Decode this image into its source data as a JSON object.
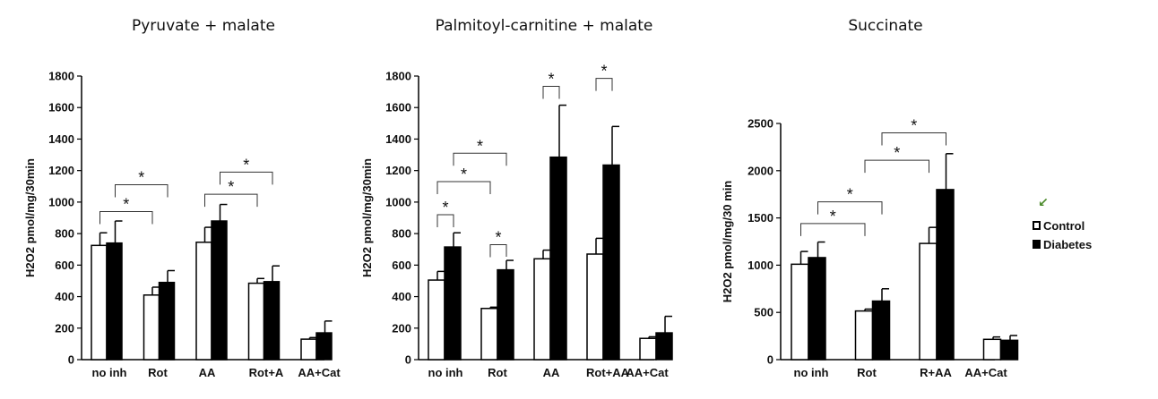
{
  "legend": {
    "arrow_icon": "green-arrow-icon",
    "control_label": "Control",
    "diabetes_label": "Diabetes",
    "control_color": "#ffffff",
    "diabetes_color": "#000000"
  },
  "chart_data": [
    {
      "type": "bar",
      "title": "Pyruvate + malate",
      "ylabel": "H2O2 pmol/mg/30min",
      "xlabel": "",
      "ylim": [
        0,
        1800
      ],
      "yticks": [
        0,
        200,
        400,
        600,
        800,
        1000,
        1200,
        1400,
        1600,
        1800
      ],
      "categories": [
        "no inh",
        "Rot",
        "AA",
        "Rot+A",
        "AA+Cat"
      ],
      "series": [
        {
          "name": "Control",
          "values": [
            725,
            410,
            745,
            485,
            130
          ],
          "errors": [
            80,
            50,
            95,
            30,
            10
          ]
        },
        {
          "name": "Diabetes",
          "values": [
            740,
            490,
            880,
            495,
            170
          ],
          "errors": [
            140,
            75,
            105,
            100,
            75
          ]
        }
      ],
      "annotations": [
        {
          "from": [
            0,
            0
          ],
          "to": [
            1,
            0
          ],
          "label": "*"
        },
        {
          "from": [
            0,
            1
          ],
          "to": [
            1,
            1
          ],
          "label": "*"
        },
        {
          "from": [
            2,
            0
          ],
          "to": [
            3,
            0
          ],
          "label": "*"
        },
        {
          "from": [
            2,
            1
          ],
          "to": [
            3,
            1
          ],
          "label": "*"
        }
      ]
    },
    {
      "type": "bar",
      "title": "Palmitoyl-carnitine + malate",
      "ylabel": "H2O2 pmol/mg/30min",
      "xlabel": "",
      "ylim": [
        0,
        1800
      ],
      "yticks": [
        0,
        200,
        400,
        600,
        800,
        1000,
        1200,
        1400,
        1600,
        1800
      ],
      "categories": [
        "no inh",
        "Rot",
        "AA",
        "Rot+AA",
        "AA+Cat"
      ],
      "series": [
        {
          "name": "Control",
          "values": [
            505,
            325,
            640,
            670,
            135
          ],
          "errors": [
            55,
            8,
            55,
            100,
            10
          ]
        },
        {
          "name": "Diabetes",
          "values": [
            715,
            570,
            1285,
            1235,
            170
          ],
          "errors": [
            90,
            60,
            330,
            245,
            105
          ]
        }
      ],
      "annotations": [
        {
          "from": [
            0,
            0
          ],
          "to": [
            0,
            1
          ],
          "label": "*"
        },
        {
          "from": [
            0,
            0
          ],
          "to": [
            1,
            0
          ],
          "label": "*"
        },
        {
          "from": [
            0,
            1
          ],
          "to": [
            1,
            1
          ],
          "label": "*"
        },
        {
          "from": [
            1,
            0
          ],
          "to": [
            1,
            1
          ],
          "label": "*"
        },
        {
          "from": [
            2,
            0
          ],
          "to": [
            2,
            1
          ],
          "label": "*"
        },
        {
          "from": [
            3,
            0
          ],
          "to": [
            3,
            1
          ],
          "label": "*"
        }
      ]
    },
    {
      "type": "bar",
      "title": "Succinate",
      "ylabel": "H2O2 pmol/mg/30 min",
      "xlabel": "",
      "ylim": [
        0,
        2500
      ],
      "yticks": [
        0,
        500,
        1000,
        1500,
        2000,
        2500
      ],
      "categories": [
        "no inh",
        "Rot",
        "R+AA",
        "AA+Cat"
      ],
      "series": [
        {
          "name": "Control",
          "values": [
            1010,
            515,
            1230,
            215
          ],
          "errors": [
            135,
            20,
            170,
            25
          ]
        },
        {
          "name": "Diabetes",
          "values": [
            1080,
            620,
            1800,
            205
          ],
          "errors": [
            165,
            130,
            380,
            50
          ]
        }
      ],
      "annotations": [
        {
          "from": [
            0,
            0
          ],
          "to": [
            1,
            0
          ],
          "label": "*"
        },
        {
          "from": [
            0,
            1
          ],
          "to": [
            1,
            1
          ],
          "label": "*"
        },
        {
          "from": [
            1,
            0
          ],
          "to": [
            2,
            0
          ],
          "label": "*"
        },
        {
          "from": [
            1,
            1
          ],
          "to": [
            2,
            1
          ],
          "label": "*"
        }
      ]
    }
  ]
}
